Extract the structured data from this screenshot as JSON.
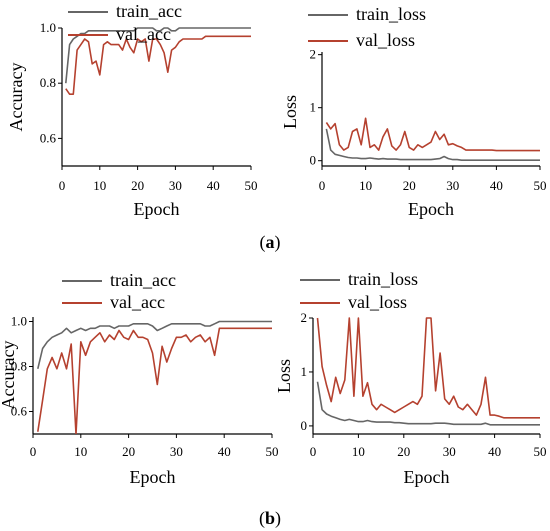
{
  "colors": {
    "train": "#666666",
    "val": "#b5412f",
    "axis": "#000000"
  },
  "captions": [
    {
      "open": "(",
      "letter": "a",
      "close": ")"
    },
    {
      "open": "(",
      "letter": "b",
      "close": ")"
    }
  ],
  "chart_data": [
    {
      "type": "line",
      "xlabel": "Epoch",
      "ylabel": "Accuracy",
      "xlim": [
        0,
        50
      ],
      "ylim": [
        0.5,
        1.0
      ],
      "xticks": [
        0,
        10,
        20,
        30,
        40,
        50
      ],
      "yticks": [
        0.6,
        0.8,
        1.0
      ],
      "ytick_labels": [
        "0.6",
        "0.8",
        "1.0"
      ],
      "legend": "top",
      "series": [
        {
          "name": "train_acc",
          "key": "train",
          "x": [
            1,
            2,
            3,
            4,
            5,
            6,
            7,
            8,
            9,
            10,
            11,
            12,
            13,
            14,
            15,
            16,
            17,
            18,
            19,
            20,
            21,
            22,
            23,
            24,
            25,
            26,
            27,
            28,
            29,
            30,
            31,
            32,
            33,
            34,
            35,
            36,
            37,
            38,
            39,
            40,
            41,
            42,
            43,
            44,
            45,
            46,
            47,
            48,
            49,
            50
          ],
          "values": [
            0.8,
            0.94,
            0.96,
            0.97,
            0.98,
            0.98,
            0.99,
            0.99,
            0.99,
            0.99,
            0.99,
            0.99,
            0.99,
            0.99,
            0.99,
            0.99,
            0.99,
            0.99,
            0.99,
            1.0,
            1.0,
            1.0,
            1.0,
            1.0,
            0.99,
            0.99,
            1.0,
            1.0,
            0.99,
            0.99,
            1.0,
            1.0,
            1.0,
            1.0,
            1.0,
            1.0,
            1.0,
            1.0,
            1.0,
            1.0,
            1.0,
            1.0,
            1.0,
            1.0,
            1.0,
            1.0,
            1.0,
            1.0,
            1.0,
            1.0
          ]
        },
        {
          "name": "val_acc",
          "key": "val",
          "x": [
            1,
            2,
            3,
            4,
            5,
            6,
            7,
            8,
            9,
            10,
            11,
            12,
            13,
            14,
            15,
            16,
            17,
            18,
            19,
            20,
            21,
            22,
            23,
            24,
            25,
            26,
            27,
            28,
            29,
            30,
            31,
            32,
            33,
            34,
            35,
            36,
            37,
            38,
            39,
            40,
            41,
            42,
            43,
            44,
            45,
            46,
            47,
            48,
            49,
            50
          ],
          "values": [
            0.78,
            0.76,
            0.76,
            0.92,
            0.94,
            0.96,
            0.95,
            0.87,
            0.88,
            0.83,
            0.94,
            0.95,
            0.94,
            0.94,
            0.94,
            0.92,
            0.96,
            0.93,
            0.91,
            0.96,
            0.95,
            0.96,
            0.88,
            0.96,
            0.96,
            0.94,
            0.91,
            0.84,
            0.92,
            0.93,
            0.95,
            0.96,
            0.96,
            0.96,
            0.96,
            0.96,
            0.96,
            0.97,
            0.97,
            0.97,
            0.97,
            0.97,
            0.97,
            0.97,
            0.97,
            0.97,
            0.97,
            0.97,
            0.97,
            0.97
          ]
        }
      ]
    },
    {
      "type": "line",
      "xlabel": "Epoch",
      "ylabel": "Loss",
      "xlim": [
        0,
        50
      ],
      "ylim": [
        -0.1,
        2.05
      ],
      "xticks": [
        0,
        10,
        20,
        30,
        40,
        50
      ],
      "yticks": [
        0,
        1,
        2
      ],
      "ytick_labels": [
        "0",
        "1",
        "2"
      ],
      "legend": "top",
      "series": [
        {
          "name": "train_loss",
          "key": "train",
          "x": [
            1,
            2,
            3,
            4,
            5,
            6,
            7,
            8,
            9,
            10,
            11,
            12,
            13,
            14,
            15,
            16,
            17,
            18,
            19,
            20,
            21,
            22,
            23,
            24,
            25,
            26,
            27,
            28,
            29,
            30,
            31,
            32,
            33,
            34,
            35,
            36,
            37,
            38,
            39,
            40,
            41,
            42,
            43,
            44,
            45,
            46,
            47,
            48,
            49,
            50
          ],
          "values": [
            0.6,
            0.2,
            0.12,
            0.1,
            0.08,
            0.06,
            0.05,
            0.05,
            0.04,
            0.04,
            0.05,
            0.04,
            0.03,
            0.04,
            0.03,
            0.03,
            0.03,
            0.02,
            0.02,
            0.02,
            0.02,
            0.02,
            0.02,
            0.02,
            0.02,
            0.03,
            0.04,
            0.08,
            0.04,
            0.02,
            0.02,
            0.01,
            0.01,
            0.01,
            0.01,
            0.01,
            0.01,
            0.01,
            0.01,
            0.01,
            0.01,
            0.01,
            0.01,
            0.01,
            0.01,
            0.01,
            0.01,
            0.01,
            0.01,
            0.01
          ]
        },
        {
          "name": "val_loss",
          "key": "val",
          "x": [
            1,
            2,
            3,
            4,
            5,
            6,
            7,
            8,
            9,
            10,
            11,
            12,
            13,
            14,
            15,
            16,
            17,
            18,
            19,
            20,
            21,
            22,
            23,
            24,
            25,
            26,
            27,
            28,
            29,
            30,
            31,
            32,
            33,
            34,
            35,
            36,
            37,
            38,
            39,
            40,
            41,
            42,
            43,
            44,
            45,
            46,
            47,
            48,
            49,
            50
          ],
          "values": [
            0.72,
            0.6,
            0.7,
            0.3,
            0.2,
            0.25,
            0.55,
            0.6,
            0.3,
            0.8,
            0.25,
            0.3,
            0.2,
            0.45,
            0.6,
            0.28,
            0.2,
            0.3,
            0.55,
            0.25,
            0.2,
            0.3,
            0.25,
            0.3,
            0.35,
            0.55,
            0.4,
            0.5,
            0.3,
            0.32,
            0.28,
            0.25,
            0.2,
            0.2,
            0.2,
            0.2,
            0.2,
            0.2,
            0.2,
            0.19,
            0.19,
            0.19,
            0.19,
            0.19,
            0.19,
            0.19,
            0.19,
            0.19,
            0.19,
            0.19
          ]
        }
      ]
    },
    {
      "type": "line",
      "xlabel": "Epoch",
      "ylabel": "Accuracy",
      "xlim": [
        0,
        50
      ],
      "ylim": [
        0.5,
        1.02
      ],
      "xticks": [
        0,
        10,
        20,
        30,
        40,
        50
      ],
      "yticks": [
        0.6,
        0.8,
        1.0
      ],
      "ytick_labels": [
        "0.6",
        "0.8",
        "1.0"
      ],
      "legend": "top",
      "series": [
        {
          "name": "train_acc",
          "key": "train",
          "x": [
            1,
            2,
            3,
            4,
            5,
            6,
            7,
            8,
            9,
            10,
            11,
            12,
            13,
            14,
            15,
            16,
            17,
            18,
            19,
            20,
            21,
            22,
            23,
            24,
            25,
            26,
            27,
            28,
            29,
            30,
            31,
            32,
            33,
            34,
            35,
            36,
            37,
            38,
            39,
            40,
            41,
            42,
            43,
            44,
            45,
            46,
            47,
            48,
            49,
            50
          ],
          "values": [
            0.79,
            0.88,
            0.91,
            0.93,
            0.94,
            0.95,
            0.97,
            0.95,
            0.96,
            0.97,
            0.96,
            0.97,
            0.97,
            0.98,
            0.98,
            0.98,
            0.97,
            0.98,
            0.98,
            0.98,
            0.99,
            0.99,
            0.99,
            0.99,
            0.98,
            0.96,
            0.97,
            0.98,
            0.99,
            0.99,
            0.99,
            0.99,
            0.99,
            0.99,
            0.99,
            0.98,
            0.98,
            0.99,
            1.0,
            1.0,
            1.0,
            1.0,
            1.0,
            1.0,
            1.0,
            1.0,
            1.0,
            1.0,
            1.0,
            1.0
          ]
        },
        {
          "name": "val_acc",
          "key": "val",
          "x": [
            1,
            2,
            3,
            4,
            5,
            6,
            7,
            8,
            9,
            10,
            11,
            12,
            13,
            14,
            15,
            16,
            17,
            18,
            19,
            20,
            21,
            22,
            23,
            24,
            25,
            26,
            27,
            28,
            29,
            30,
            31,
            32,
            33,
            34,
            35,
            36,
            37,
            38,
            39,
            40,
            41,
            42,
            43,
            44,
            45,
            46,
            47,
            48,
            49,
            50
          ],
          "values": [
            0.51,
            0.65,
            0.79,
            0.84,
            0.79,
            0.86,
            0.79,
            0.9,
            0.5,
            0.91,
            0.85,
            0.91,
            0.93,
            0.95,
            0.91,
            0.94,
            0.92,
            0.96,
            0.93,
            0.92,
            0.96,
            0.93,
            0.93,
            0.92,
            0.86,
            0.72,
            0.89,
            0.82,
            0.88,
            0.93,
            0.93,
            0.94,
            0.91,
            0.93,
            0.94,
            0.91,
            0.93,
            0.85,
            0.97,
            0.97,
            0.97,
            0.97,
            0.97,
            0.97,
            0.97,
            0.97,
            0.97,
            0.97,
            0.97,
            0.97
          ]
        }
      ]
    },
    {
      "type": "line",
      "xlabel": "Epoch",
      "ylabel": "Loss",
      "xlim": [
        0,
        50
      ],
      "ylim": [
        -0.15,
        2.0
      ],
      "xticks": [
        0,
        10,
        20,
        30,
        40,
        50
      ],
      "yticks": [
        0,
        1,
        2
      ],
      "ytick_labels": [
        "0",
        "1",
        "2"
      ],
      "legend": "top",
      "series": [
        {
          "name": "train_loss",
          "key": "train",
          "x": [
            1,
            2,
            3,
            4,
            5,
            6,
            7,
            8,
            9,
            10,
            11,
            12,
            13,
            14,
            15,
            16,
            17,
            18,
            19,
            20,
            21,
            22,
            23,
            24,
            25,
            26,
            27,
            28,
            29,
            30,
            31,
            32,
            33,
            34,
            35,
            36,
            37,
            38,
            39,
            40,
            41,
            42,
            43,
            44,
            45,
            46,
            47,
            48,
            49,
            50
          ],
          "values": [
            0.82,
            0.3,
            0.22,
            0.18,
            0.15,
            0.12,
            0.1,
            0.12,
            0.1,
            0.08,
            0.08,
            0.1,
            0.08,
            0.07,
            0.07,
            0.07,
            0.07,
            0.06,
            0.06,
            0.05,
            0.04,
            0.04,
            0.04,
            0.04,
            0.04,
            0.04,
            0.05,
            0.05,
            0.05,
            0.04,
            0.03,
            0.03,
            0.03,
            0.03,
            0.03,
            0.03,
            0.03,
            0.05,
            0.02,
            0.02,
            0.02,
            0.02,
            0.02,
            0.02,
            0.02,
            0.02,
            0.02,
            0.02,
            0.02,
            0.02
          ]
        },
        {
          "name": "val_loss",
          "key": "val",
          "x": [
            1,
            2,
            3,
            4,
            5,
            6,
            7,
            8,
            9,
            10,
            11,
            12,
            13,
            14,
            15,
            16,
            17,
            18,
            19,
            20,
            21,
            22,
            23,
            24,
            25,
            26,
            27,
            28,
            29,
            30,
            31,
            32,
            33,
            34,
            35,
            36,
            37,
            38,
            39,
            40,
            41,
            42,
            43,
            44,
            45,
            46,
            47,
            48,
            49,
            50
          ],
          "values": [
            2.0,
            1.1,
            0.75,
            0.45,
            0.9,
            0.6,
            0.85,
            2.0,
            0.55,
            2.0,
            0.55,
            0.8,
            0.4,
            0.3,
            0.4,
            0.35,
            0.3,
            0.25,
            0.3,
            0.35,
            0.4,
            0.45,
            0.4,
            0.55,
            2.0,
            2.0,
            0.65,
            1.35,
            0.5,
            0.4,
            0.55,
            0.35,
            0.3,
            0.4,
            0.3,
            0.2,
            0.4,
            0.9,
            0.2,
            0.2,
            0.18,
            0.15,
            0.15,
            0.15,
            0.15,
            0.15,
            0.15,
            0.15,
            0.15,
            0.15
          ]
        }
      ]
    }
  ]
}
